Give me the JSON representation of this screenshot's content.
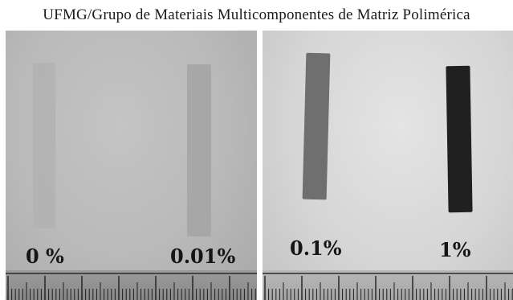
{
  "caption": "UFMG/Grupo de Materiais Multicomponentes de Matriz Polimérica",
  "panels": [
    {
      "samples": [
        {
          "label": "0 %"
        },
        {
          "label": "0.01%"
        }
      ]
    },
    {
      "samples": [
        {
          "label": "0.1%"
        },
        {
          "label": "1%"
        }
      ]
    }
  ],
  "colors": {
    "strip_0": "#b3b3b3",
    "strip_001": "#a7a7a7",
    "strip_01": "#6f6f6f",
    "strip_1": "#202020"
  }
}
